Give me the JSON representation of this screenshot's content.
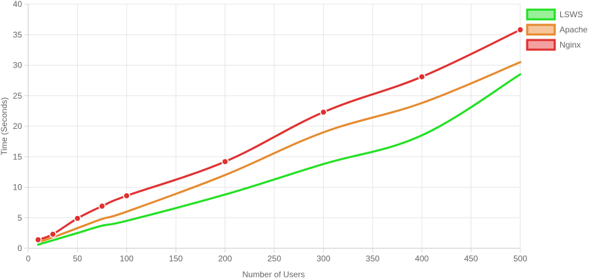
{
  "chart_data": {
    "type": "line",
    "xlabel": "Number of Users",
    "ylabel": "Time (Seconds)",
    "xlim": [
      0,
      500
    ],
    "ylim": [
      0,
      40
    ],
    "x_ticks": [
      0,
      50,
      100,
      150,
      200,
      250,
      300,
      350,
      400,
      450,
      500
    ],
    "y_ticks": [
      0,
      5,
      10,
      15,
      20,
      25,
      30,
      35,
      40
    ],
    "grid": true,
    "legend_position": "top-right",
    "series": [
      {
        "name": "LSWS",
        "color": "#22e022",
        "fill": "#99f099",
        "show_markers": false,
        "points": [
          {
            "x": 10,
            "y": 0.6
          },
          {
            "x": 25,
            "y": 1.3
          },
          {
            "x": 50,
            "y": 2.5
          },
          {
            "x": 75,
            "y": 3.7
          },
          {
            "x": 100,
            "y": 4.5
          },
          {
            "x": 200,
            "y": 8.8
          },
          {
            "x": 300,
            "y": 13.8
          },
          {
            "x": 400,
            "y": 18.5
          },
          {
            "x": 500,
            "y": 28.5
          }
        ]
      },
      {
        "name": "Apache",
        "color": "#e68a2e",
        "fill": "#f5c49a",
        "show_markers": false,
        "points": [
          {
            "x": 10,
            "y": 1.0
          },
          {
            "x": 25,
            "y": 1.8
          },
          {
            "x": 50,
            "y": 3.3
          },
          {
            "x": 75,
            "y": 4.8
          },
          {
            "x": 100,
            "y": 6.0
          },
          {
            "x": 200,
            "y": 12.0
          },
          {
            "x": 300,
            "y": 19.0
          },
          {
            "x": 400,
            "y": 23.8
          },
          {
            "x": 500,
            "y": 30.5
          }
        ]
      },
      {
        "name": "Nginx",
        "color": "#e03030",
        "fill": "#f5a0a0",
        "show_markers": true,
        "points": [
          {
            "x": 10,
            "y": 1.4
          },
          {
            "x": 25,
            "y": 2.3
          },
          {
            "x": 50,
            "y": 4.9
          },
          {
            "x": 75,
            "y": 6.9
          },
          {
            "x": 100,
            "y": 8.6
          },
          {
            "x": 200,
            "y": 14.2
          },
          {
            "x": 300,
            "y": 22.3
          },
          {
            "x": 400,
            "y": 28.1
          },
          {
            "x": 500,
            "y": 35.8
          }
        ]
      }
    ]
  }
}
